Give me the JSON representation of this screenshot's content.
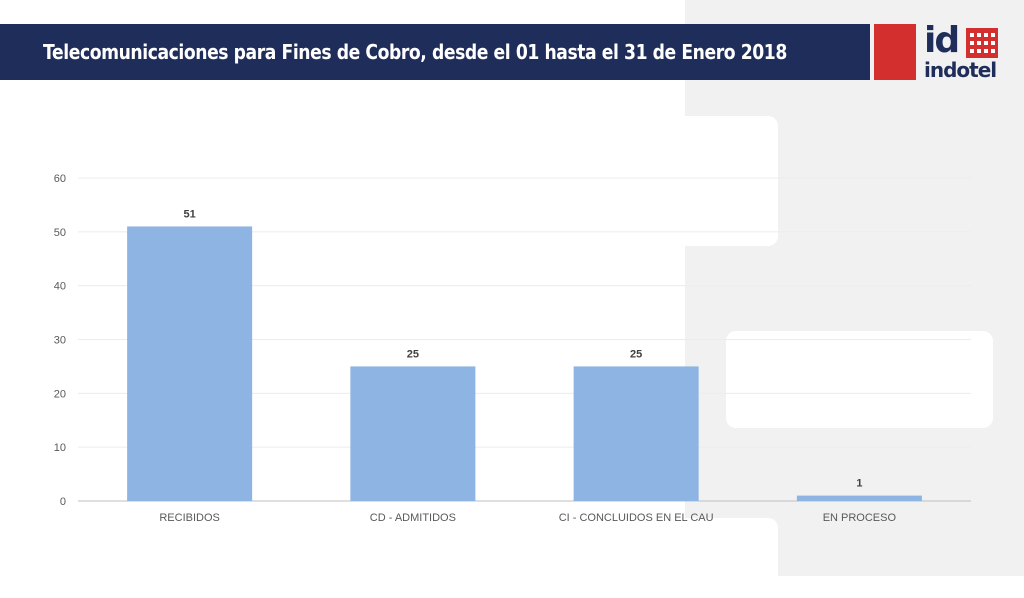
{
  "header": {
    "title": "Telecomunicaciones para Fines de Cobro, desde el 01 hasta el 31 de Enero 2018"
  },
  "logo": {
    "mark": "id",
    "word": "indotel"
  },
  "colors": {
    "title_bar": "#1f2d5a",
    "bar": "#8db4e2",
    "brand_red": "#d32f2f"
  },
  "chart_data": {
    "type": "bar",
    "title": "",
    "xlabel": "",
    "ylabel": "",
    "categories": [
      "RECIBIDOS",
      "CD - ADMITIDOS",
      "CI - CONCLUIDOS EN EL CAU",
      "EN PROCESO"
    ],
    "values": [
      51,
      25,
      25,
      1
    ],
    "ylim": [
      0,
      60
    ],
    "yticks": [
      0,
      10,
      20,
      30,
      40,
      50,
      60
    ],
    "grid": true,
    "data_labels": true,
    "legend": "none"
  }
}
